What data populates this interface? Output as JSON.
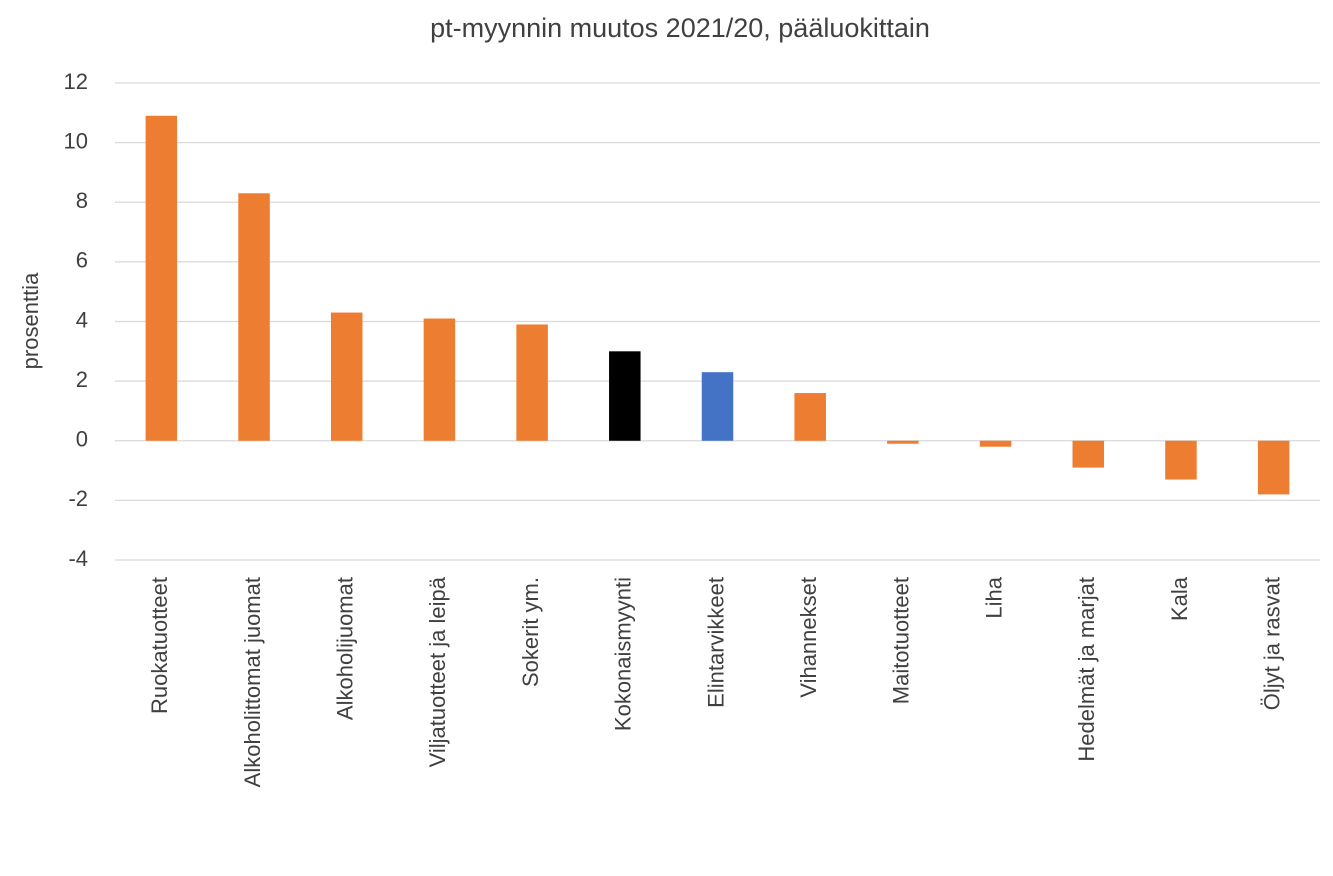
{
  "chart_data": {
    "type": "bar",
    "title": "pt-myynnin muutos 2021/20, pääluokittain",
    "y_label": "prosenttia",
    "categories": [
      "Ruokatuotteet",
      "Alkoholittomat juomat",
      "Alkoholijuomat",
      "Viljatuotteet ja leipä",
      "Sokerit ym.",
      "Kokonaismyynti",
      "Elintarvikkeet",
      "Vihannekset",
      "Maitotuotteet",
      "Liha",
      "Hedelmät ja marjat",
      "Kala",
      "Öljyt ja rasvat"
    ],
    "values": [
      10.9,
      8.3,
      4.3,
      4.1,
      3.9,
      3.0,
      2.3,
      1.6,
      -0.1,
      -0.2,
      -0.9,
      -1.3,
      -1.8
    ],
    "colors": [
      "#ed7d31",
      "#ed7d31",
      "#ed7d31",
      "#ed7d31",
      "#ed7d31",
      "#000000",
      "#4472c4",
      "#ed7d31",
      "#ed7d31",
      "#ed7d31",
      "#ed7d31",
      "#ed7d31",
      "#ed7d31"
    ],
    "ylim": [
      -4,
      12
    ],
    "yticks": [
      -4,
      -2,
      0,
      2,
      4,
      6,
      8,
      10,
      12
    ],
    "grid": true
  }
}
